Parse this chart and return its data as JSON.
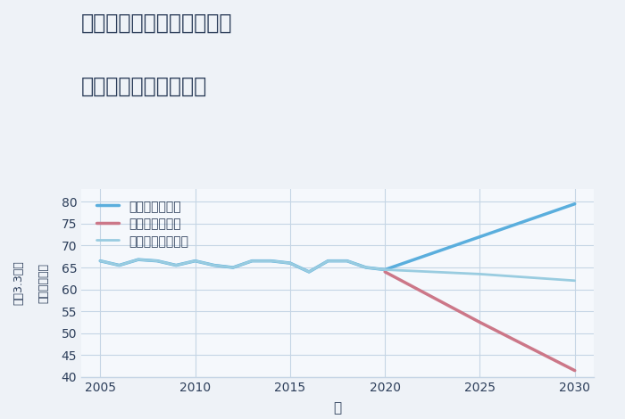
{
  "title_line1": "兵庫県丹波市市島町酒梨の",
  "title_line2": "中古戸建ての価格推移",
  "xlabel": "年",
  "ylabel_line1": "単価（万円）",
  "ylabel_line2": "坪（3.3㎡）",
  "background_color": "#eef2f7",
  "plot_background_color": "#f5f8fc",
  "grid_color": "#c5d5e5",
  "xlim": [
    2004,
    2031
  ],
  "ylim": [
    40,
    83
  ],
  "yticks": [
    40,
    45,
    50,
    55,
    60,
    65,
    70,
    75,
    80
  ],
  "xticks": [
    2005,
    2010,
    2015,
    2020,
    2025,
    2030
  ],
  "good_scenario": {
    "x": [
      2005,
      2006,
      2007,
      2008,
      2009,
      2010,
      2011,
      2012,
      2013,
      2014,
      2015,
      2016,
      2017,
      2018,
      2019,
      2020,
      2025,
      2030
    ],
    "y": [
      66.5,
      65.5,
      66.8,
      66.5,
      65.5,
      66.5,
      65.5,
      65.0,
      66.5,
      66.5,
      66.0,
      64.0,
      66.5,
      66.5,
      65.0,
      64.5,
      72.0,
      79.5
    ],
    "color": "#5aaedd",
    "label": "グッドシナリオ",
    "linewidth": 2.5
  },
  "bad_scenario": {
    "x": [
      2020,
      2025,
      2030
    ],
    "y": [
      64.0,
      52.5,
      41.5
    ],
    "color": "#cc7788",
    "label": "バッドシナリオ",
    "linewidth": 2.5
  },
  "normal_scenario": {
    "x": [
      2005,
      2006,
      2007,
      2008,
      2009,
      2010,
      2011,
      2012,
      2013,
      2014,
      2015,
      2016,
      2017,
      2018,
      2019,
      2020,
      2025,
      2030
    ],
    "y": [
      66.5,
      65.5,
      66.8,
      66.5,
      65.5,
      66.5,
      65.5,
      65.0,
      66.5,
      66.5,
      66.0,
      64.0,
      66.5,
      66.5,
      65.0,
      64.5,
      63.5,
      62.0
    ],
    "color": "#99cce0",
    "label": "ノーマルシナリオ",
    "linewidth": 2.0
  },
  "title_color": "#2c3e5a",
  "tick_color": "#2c3e5a",
  "axis_label_color": "#2c3e5a",
  "legend_text_color": "#2c3e5a",
  "title_fontsize": 17,
  "tick_fontsize": 10,
  "legend_fontsize": 10
}
